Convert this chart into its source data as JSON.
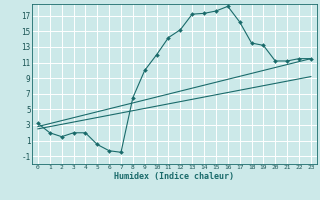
{
  "xlabel": "Humidex (Indice chaleur)",
  "bg_color": "#cce9e9",
  "grid_color": "#ffffff",
  "line_color": "#1a6b6b",
  "xlim": [
    -0.5,
    23.5
  ],
  "ylim": [
    -2.0,
    18.5
  ],
  "xticks": [
    0,
    1,
    2,
    3,
    4,
    5,
    6,
    7,
    8,
    9,
    10,
    11,
    12,
    13,
    14,
    15,
    16,
    17,
    18,
    19,
    20,
    21,
    22,
    23
  ],
  "yticks": [
    -1,
    1,
    3,
    5,
    7,
    9,
    11,
    13,
    15,
    17
  ],
  "curve1_x": [
    0,
    1,
    2,
    3,
    4,
    5,
    6,
    7,
    8,
    9,
    10,
    11,
    12,
    13,
    14,
    15,
    16,
    17,
    18,
    19,
    20,
    21,
    22,
    23
  ],
  "curve1_y": [
    3.2,
    2.0,
    1.5,
    2.0,
    2.0,
    0.5,
    -0.3,
    -0.5,
    6.5,
    10.0,
    12.0,
    14.2,
    15.2,
    17.2,
    17.3,
    17.6,
    18.2,
    16.2,
    13.5,
    13.2,
    11.2,
    11.2,
    11.5,
    11.5
  ],
  "line2_x": [
    0,
    23
  ],
  "line2_y": [
    2.8,
    11.5
  ],
  "line3_x": [
    0,
    23
  ],
  "line3_y": [
    2.5,
    9.2
  ]
}
